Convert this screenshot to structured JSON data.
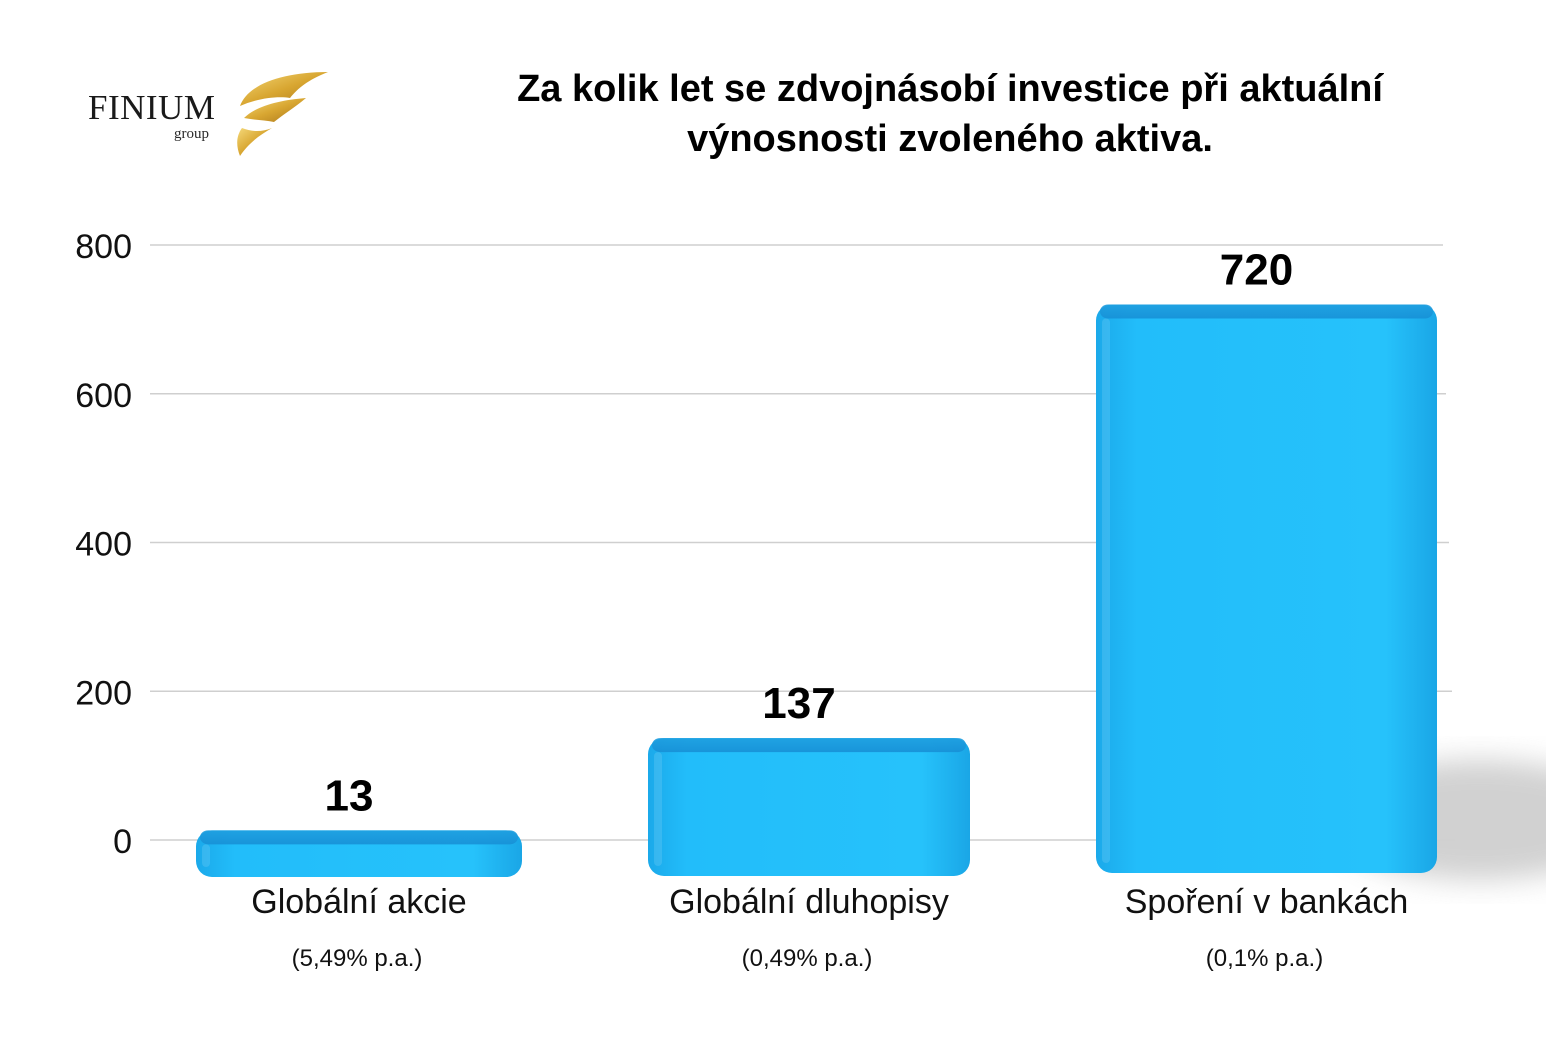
{
  "logo": {
    "name": "FINIUM",
    "sub": "group"
  },
  "colors": {
    "bar": "#1fb8f7",
    "bar_dark": "#0f8fd4",
    "grid": "#cfcfcf",
    "gold": "#d8a631"
  },
  "chart_data": {
    "type": "bar",
    "title": "Za kolik let se zdvojnásobí investice při aktuální výnosnosti zvoleného aktiva.",
    "title_lines": [
      "Za kolik let se zdvojnásobí investice při aktuální",
      "výnosnosti zvoleného aktiva."
    ],
    "categories": [
      "Globální akcie",
      "Globální dluhopisy",
      "Spoření v bankách"
    ],
    "sublabels": [
      "(5,49% p.a.)",
      "(0,49% p.a.)",
      "(0,1% p.a.)"
    ],
    "values": [
      13,
      137,
      720
    ],
    "value_labels": [
      "13",
      "137",
      "720"
    ],
    "ylim": [
      0,
      800
    ],
    "yticks": [
      0,
      200,
      400,
      600,
      800
    ],
    "ytick_labels": [
      "0",
      "200",
      "400",
      "600",
      "800"
    ],
    "xlabel": "",
    "ylabel": "",
    "grid": true,
    "legend": "none"
  }
}
